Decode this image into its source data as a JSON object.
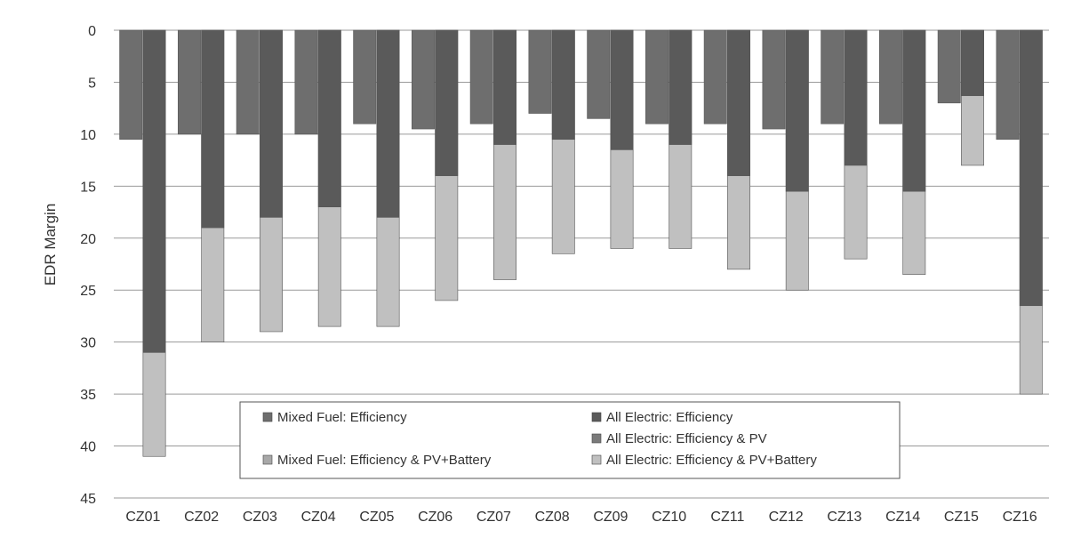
{
  "chart_data": {
    "type": "bar",
    "orientation": "vertical-downward",
    "ylabel": "EDR Margin",
    "xlabel": "",
    "title": "",
    "ylim": [
      0,
      45
    ],
    "yticks": [
      "0",
      "5",
      "10",
      "15",
      "20",
      "25",
      "30",
      "35",
      "40",
      "45"
    ],
    "grid": true,
    "legend_position": "bottom-center",
    "categories": [
      "CZ01",
      "CZ02",
      "CZ03",
      "CZ04",
      "CZ05",
      "CZ06",
      "CZ07",
      "CZ08",
      "CZ09",
      "CZ10",
      "CZ11",
      "CZ12",
      "CZ13",
      "CZ14",
      "CZ15",
      "CZ16"
    ],
    "series": [
      {
        "name": "Mixed Fuel: Efficiency",
        "color": "#6e6e6e",
        "group": "mixed",
        "values": [
          10.5,
          10,
          10,
          10,
          9,
          9.5,
          9,
          8,
          8.5,
          9,
          9,
          9.5,
          9,
          9,
          7,
          10.5
        ]
      },
      {
        "name": "Mixed Fuel: Efficiency & PV+Battery",
        "color": "#a8a8a8",
        "group": "mixed",
        "values": [
          0,
          0,
          0,
          0,
          0,
          0,
          0,
          0,
          0,
          0,
          0,
          0,
          0,
          0,
          0,
          0
        ]
      },
      {
        "name": "All Electric: Efficiency",
        "color": "#5a5a5a",
        "group": "electric",
        "values": [
          31,
          19,
          18,
          17,
          18,
          14,
          11,
          10.5,
          11.5,
          11,
          14,
          15.5,
          13,
          15.5,
          6.3,
          26.5
        ]
      },
      {
        "name": "All Electric: Efficiency & PV",
        "color": "#7a7a7a",
        "group": "electric",
        "values": [
          0,
          0,
          0,
          0,
          0,
          0,
          0,
          0,
          0,
          0,
          0,
          0,
          0,
          0,
          0,
          0
        ]
      },
      {
        "name": "All Electric: Efficiency & PV+Battery",
        "color": "#c0c0c0",
        "group": "electric",
        "values": [
          41,
          30,
          29,
          28.5,
          28.5,
          26,
          24,
          21.5,
          21,
          21,
          23,
          25,
          22,
          23.5,
          13,
          35
        ]
      }
    ],
    "legend": [
      {
        "label": "Mixed Fuel: Efficiency",
        "color": "#6e6e6e"
      },
      {
        "label": "All Electric: Efficiency",
        "color": "#5a5a5a"
      },
      {
        "label": "",
        "color": ""
      },
      {
        "label": "All Electric: Efficiency & PV",
        "color": "#7a7a7a"
      },
      {
        "label": "Mixed Fuel: Efficiency & PV+Battery",
        "color": "#a8a8a8"
      },
      {
        "label": "All Electric: Efficiency & PV+Battery",
        "color": "#c0c0c0"
      }
    ]
  }
}
